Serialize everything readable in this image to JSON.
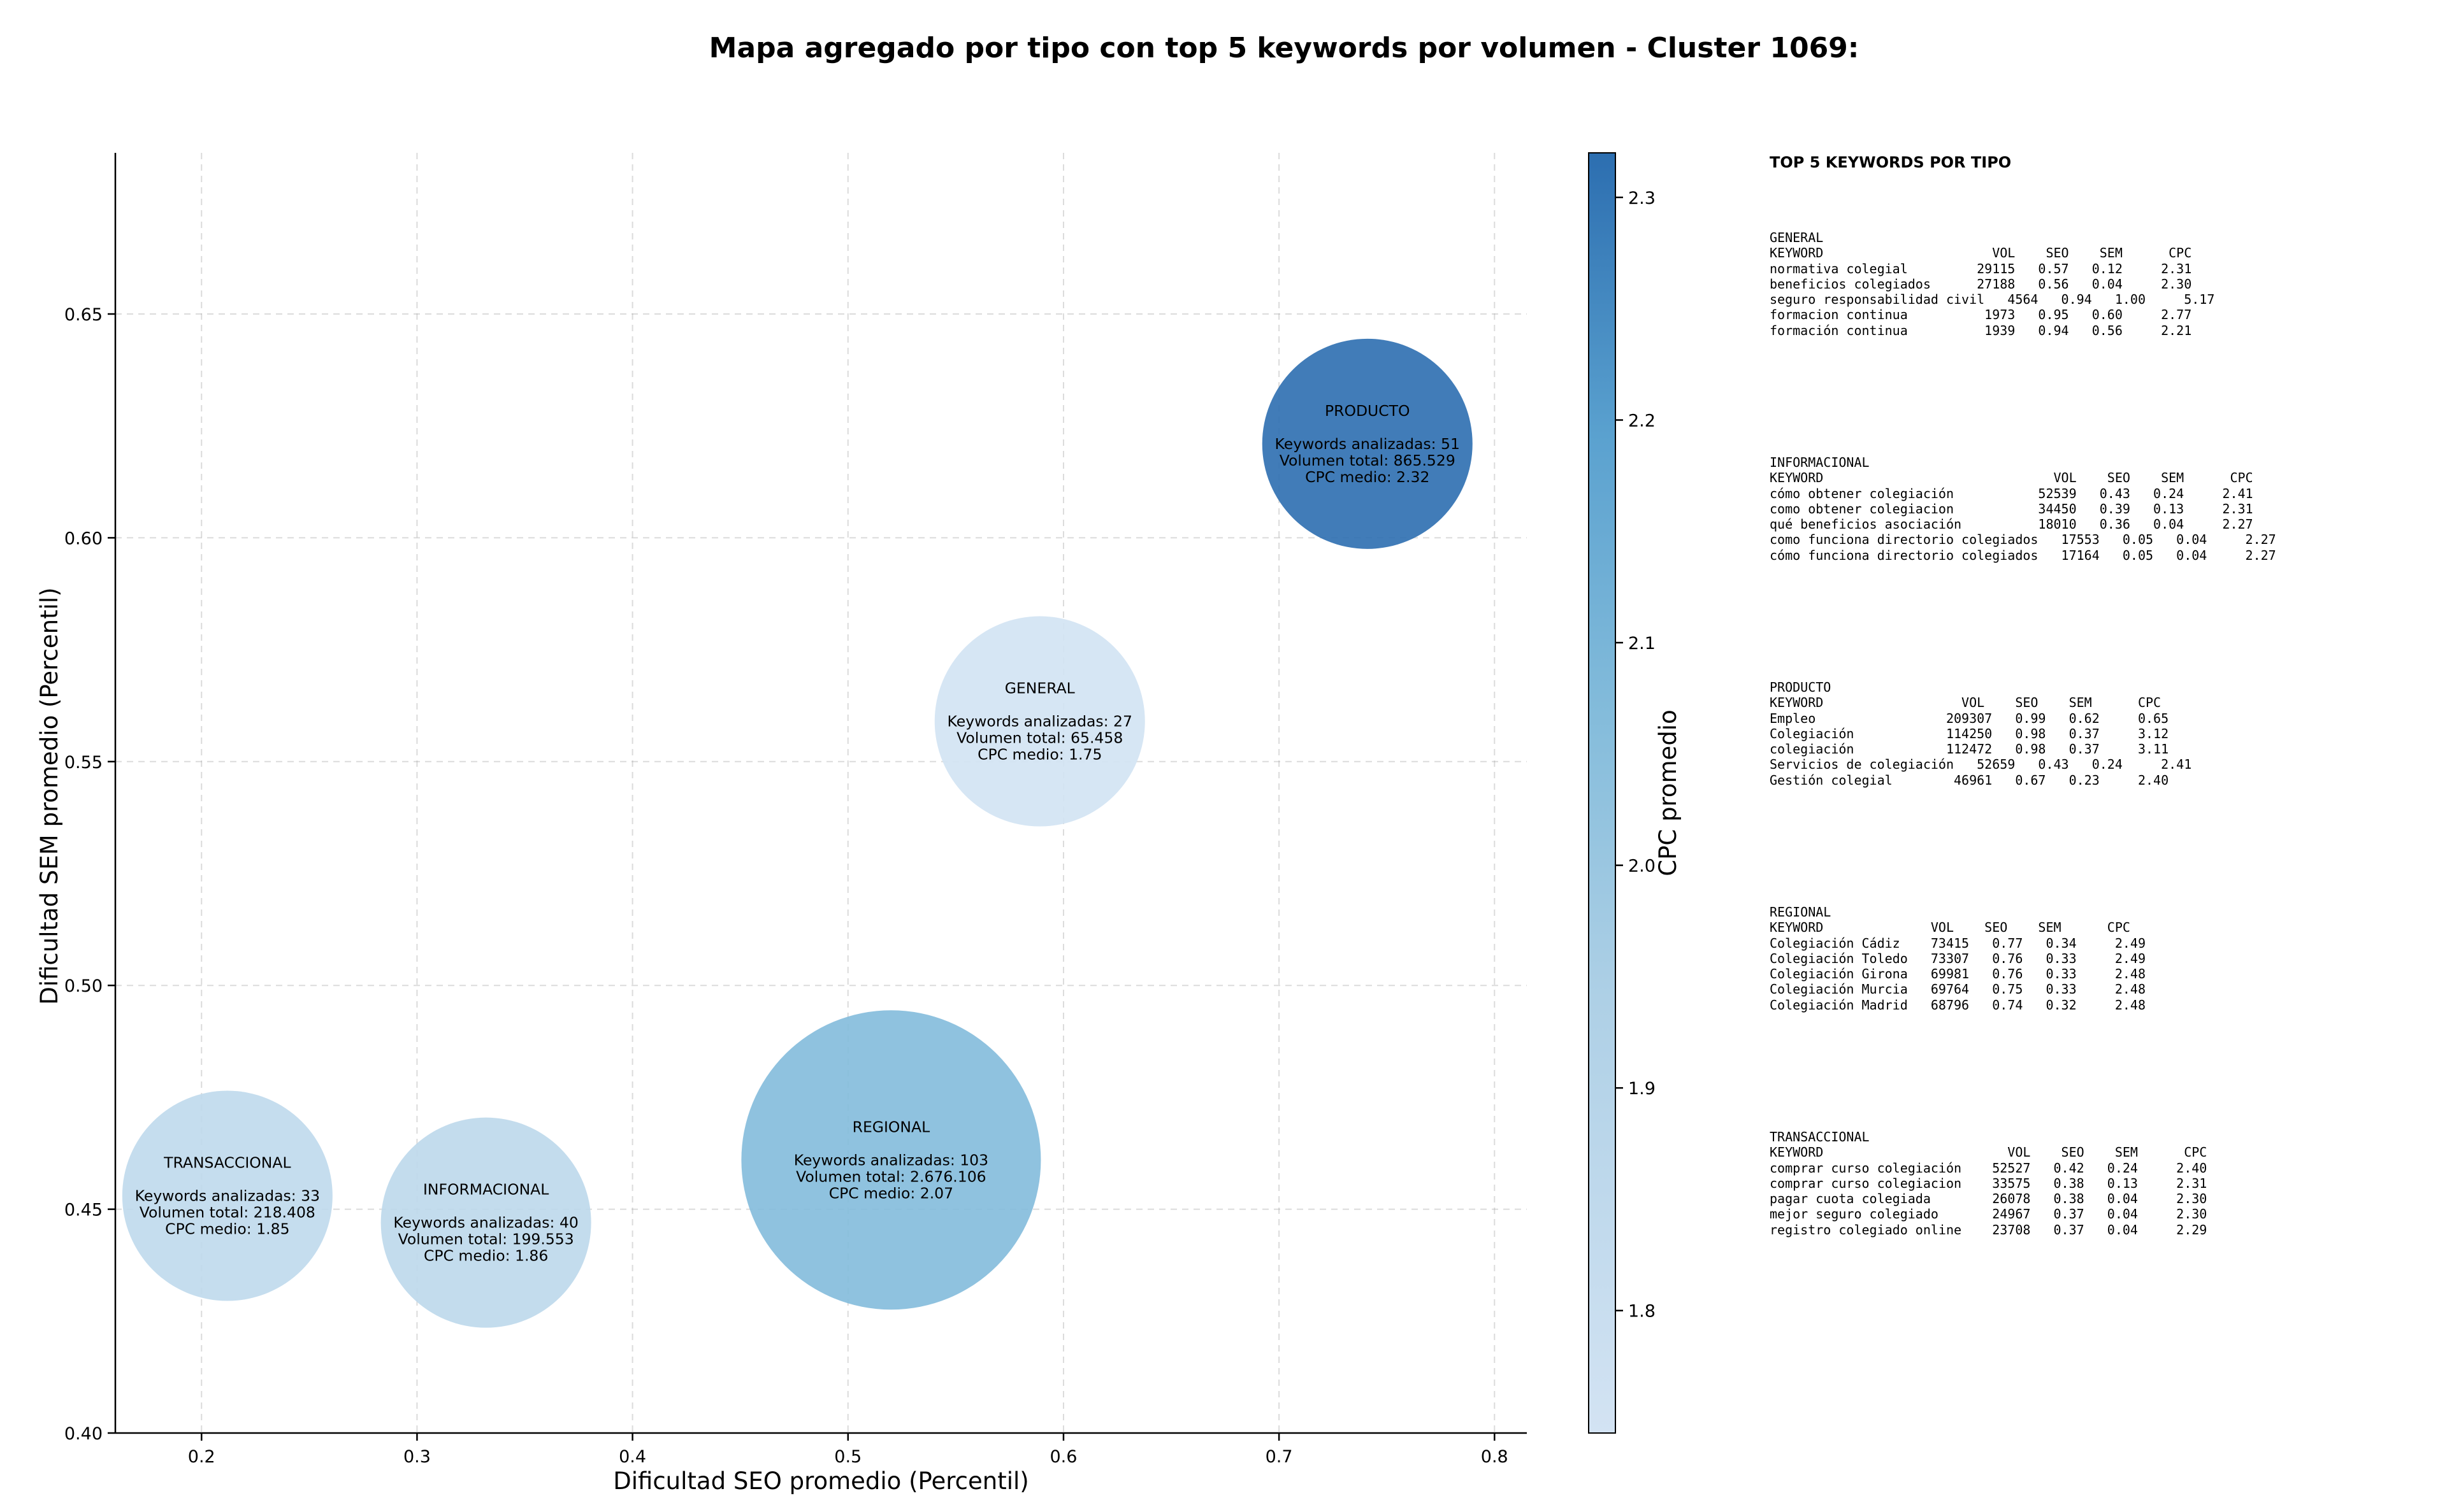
{
  "title": "Mapa agregado por tipo con top 5 keywords por volumen - Cluster 1069:",
  "colors": {
    "cmap_low": "#d3e3f3",
    "cmap_high": "#2c6eb0"
  },
  "chart_data": {
    "type": "scatter",
    "xlabel": "Dificultad SEO promedio (Percentil)",
    "ylabel": "Dificultad SEM promedio (Percentil)",
    "xlim": [
      0.16,
      0.815
    ],
    "ylim": [
      0.4,
      0.686
    ],
    "xticks": [
      0.2,
      0.3,
      0.4,
      0.5,
      0.6,
      0.7,
      0.8
    ],
    "xtick_labels": [
      "0.2",
      "0.3",
      "0.4",
      "0.5",
      "0.6",
      "0.7",
      "0.8"
    ],
    "yticks": [
      0.4,
      0.45,
      0.5,
      0.55,
      0.6,
      0.65
    ],
    "ytick_labels": [
      "0.40",
      "0.45",
      "0.50",
      "0.55",
      "0.60",
      "0.65"
    ],
    "grid": true,
    "colorbar": {
      "label": "CPC promedio",
      "range": [
        1.745,
        2.32
      ],
      "ticks": [
        1.8,
        1.9,
        2.0,
        2.1,
        2.2,
        2.3
      ],
      "tick_labels": [
        "1.8",
        "1.9",
        "2.0",
        "2.1",
        "2.2",
        "2.3"
      ]
    },
    "points": [
      {
        "name": "TRANSACCIONAL",
        "x": 0.212,
        "y": 0.453,
        "cpc": 1.85,
        "keywords": 33,
        "volume": 218408,
        "lines": [
          "TRANSACCIONAL",
          "",
          "Keywords analizadas: 33",
          "Volumen total: 218.408",
          "CPC medio: 1.85"
        ]
      },
      {
        "name": "INFORMACIONAL",
        "x": 0.332,
        "y": 0.447,
        "cpc": 1.86,
        "keywords": 40,
        "volume": 199553,
        "lines": [
          "INFORMACIONAL",
          "",
          "Keywords analizadas: 40",
          "Volumen total: 199.553",
          "CPC medio: 1.86"
        ]
      },
      {
        "name": "REGIONAL",
        "x": 0.52,
        "y": 0.461,
        "cpc": 2.07,
        "keywords": 103,
        "volume": 2676106,
        "lines": [
          "REGIONAL",
          "",
          "Keywords analizadas: 103",
          "Volumen total: 2.676.106",
          "CPC medio: 2.07"
        ]
      },
      {
        "name": "GENERAL",
        "x": 0.589,
        "y": 0.559,
        "cpc": 1.75,
        "keywords": 27,
        "volume": 65458,
        "lines": [
          "GENERAL",
          "",
          "Keywords analizadas: 27",
          "Volumen total: 65.458",
          "CPC medio: 1.75"
        ]
      },
      {
        "name": "PRODUCTO",
        "x": 0.741,
        "y": 0.621,
        "cpc": 2.32,
        "keywords": 51,
        "volume": 865529,
        "lines": [
          "PRODUCTO",
          "",
          "Keywords analizadas: 51",
          "Volumen total: 865.529",
          "CPC medio: 2.32"
        ]
      }
    ]
  },
  "panel": {
    "title": "TOP 5 KEYWORDS POR TIPO",
    "blocks": [
      {
        "lines": [
          "GENERAL",
          "KEYWORD                      VOL    SEO    SEM      CPC",
          "normativa colegial         29115   0.57   0.12     2.31",
          "beneficios colegiados      27188   0.56   0.04     2.30",
          "seguro responsabilidad civil   4564   0.94   1.00     5.17",
          "formacion continua          1973   0.95   0.60     2.77",
          "formación continua          1939   0.94   0.56     2.21"
        ]
      },
      {
        "lines": [
          "INFORMACIONAL",
          "KEYWORD                              VOL    SEO    SEM      CPC",
          "cómo obtener colegiación           52539   0.43   0.24     2.41",
          "como obtener colegiacion           34450   0.39   0.13     2.31",
          "qué beneficios asociación          18010   0.36   0.04     2.27",
          "como funciona directorio colegiados   17553   0.05   0.04     2.27",
          "cómo funciona directorio colegiados   17164   0.05   0.04     2.27"
        ]
      },
      {
        "lines": [
          "PRODUCTO",
          "KEYWORD                  VOL    SEO    SEM      CPC",
          "Empleo                 209307   0.99   0.62     0.65",
          "Colegiación            114250   0.98   0.37     3.12",
          "colegiación            112472   0.98   0.37     3.11",
          "Servicios de colegiación   52659   0.43   0.24     2.41",
          "Gestión colegial        46961   0.67   0.23     2.40"
        ]
      },
      {
        "lines": [
          "REGIONAL",
          "KEYWORD              VOL    SEO    SEM      CPC",
          "Colegiación Cádiz    73415   0.77   0.34     2.49",
          "Colegiación Toledo   73307   0.76   0.33     2.49",
          "Colegiación Girona   69981   0.76   0.33     2.48",
          "Colegiación Murcia   69764   0.75   0.33     2.48",
          "Colegiación Madrid   68796   0.74   0.32     2.48"
        ]
      },
      {
        "lines": [
          "TRANSACCIONAL",
          "KEYWORD                        VOL    SEO    SEM      CPC",
          "comprar curso colegiación    52527   0.42   0.24     2.40",
          "comprar curso colegiacion    33575   0.38   0.13     2.31",
          "pagar cuota colegiada        26078   0.38   0.04     2.30",
          "mejor seguro colegiado       24967   0.37   0.04     2.30",
          "registro colegiado online    23708   0.37   0.04     2.29"
        ]
      }
    ]
  }
}
